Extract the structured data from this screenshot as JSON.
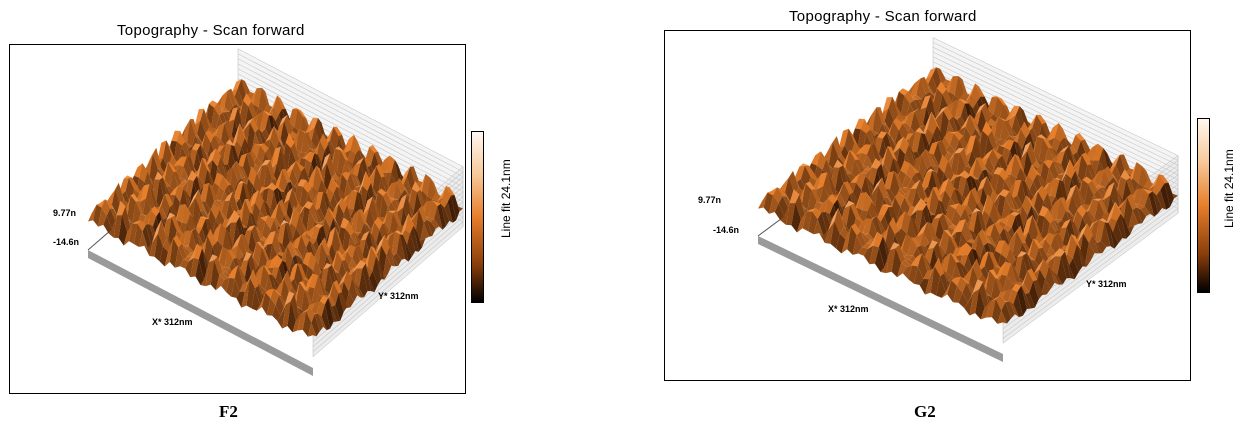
{
  "panels": [
    {
      "title": "Topography - Scan forward",
      "z_max": "9.77n",
      "z_min": "-14.6n",
      "x_axis": "X* 312nm",
      "y_axis": "Y* 312nm",
      "colorbar_label": "Line fit 24.1nm",
      "caption": "F2"
    },
    {
      "title": "Topography - Scan forward",
      "z_max": "9.77n",
      "z_min": "-14.6n",
      "x_axis": "X* 312nm",
      "y_axis": "Y* 312nm",
      "colorbar_label": "Line fit 24.1nm",
      "caption": "G2"
    }
  ],
  "colors": {
    "surface_peak": "#fdf0e4",
    "surface_mid": "#e67e2a",
    "surface_valley": "#3a1a05",
    "base": "#9a9a9a"
  }
}
